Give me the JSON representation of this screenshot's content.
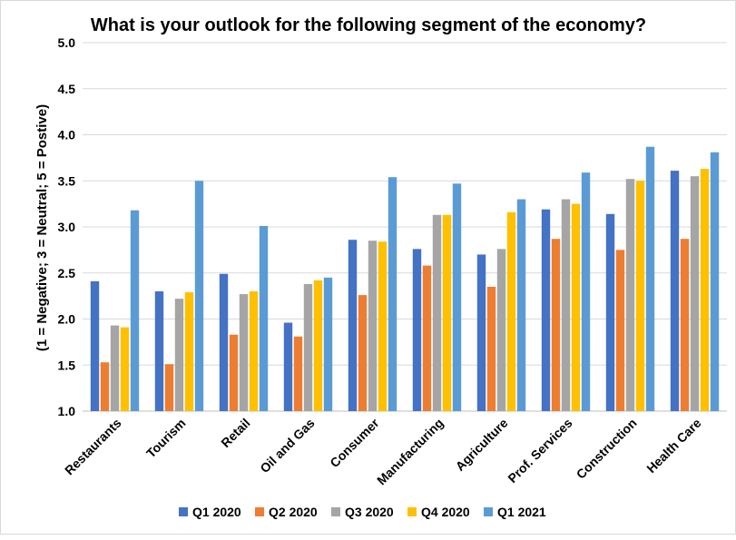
{
  "chart_data": {
    "type": "bar",
    "title": "What is your outlook for the following segment of the economy?",
    "ylabel": "(1 = Negative; 3 = Neutral; 5 = Postive)",
    "xlabel": "",
    "ylim": [
      1.0,
      5.0
    ],
    "yticks": [
      "1.0",
      "1.5",
      "2.0",
      "2.5",
      "3.0",
      "3.5",
      "4.0",
      "4.5",
      "5.0"
    ],
    "grid": "horizontal",
    "legend_position": "bottom",
    "categories": [
      "Restaurants",
      "Tourism",
      "Retail",
      "Oil and Gas",
      "Consumer",
      "Manufacturing",
      "Agriculture",
      "Prof. Services",
      "Construction",
      "Health Care"
    ],
    "series": [
      {
        "name": "Q1 2020",
        "color": "#4472c4",
        "values": [
          2.41,
          2.3,
          2.49,
          1.96,
          2.86,
          2.76,
          2.7,
          3.19,
          3.14,
          3.61
        ]
      },
      {
        "name": "Q2 2020",
        "color": "#ed7d31",
        "values": [
          1.53,
          1.51,
          1.83,
          1.81,
          2.26,
          2.58,
          2.35,
          2.87,
          2.75,
          2.87
        ]
      },
      {
        "name": "Q3 2020",
        "color": "#a5a5a5",
        "values": [
          1.93,
          2.22,
          2.27,
          2.38,
          2.85,
          3.13,
          2.76,
          3.3,
          3.52,
          3.55
        ]
      },
      {
        "name": "Q4 2020",
        "color": "#ffc000",
        "values": [
          1.91,
          2.29,
          2.3,
          2.42,
          2.84,
          3.13,
          3.16,
          3.25,
          3.5,
          3.63
        ]
      },
      {
        "name": "Q1 2021",
        "color": "#5b9bd5",
        "values": [
          3.18,
          3.5,
          3.01,
          2.45,
          3.54,
          3.47,
          3.3,
          3.59,
          3.87,
          3.81
        ]
      }
    ]
  }
}
